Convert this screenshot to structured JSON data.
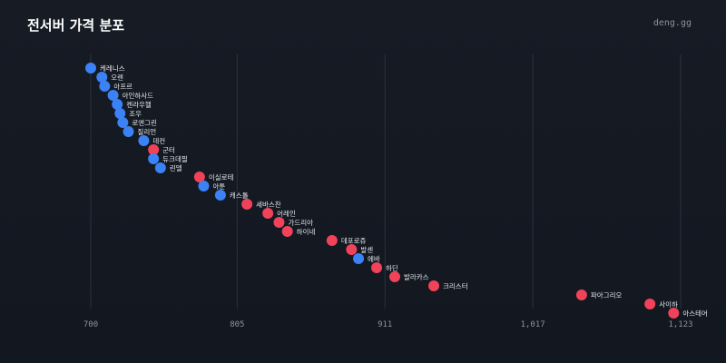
{
  "header": {
    "title": "전서버 가격 분포",
    "brand": "deng.gg"
  },
  "colors": {
    "background": "#131821",
    "grid": "#2b3340",
    "series_blue": "#3b82f6",
    "series_red": "#f0435a"
  },
  "chart_data": {
    "type": "scatter",
    "title": "전서버 가격 분포",
    "xlabel": "",
    "ylabel": "",
    "xlim": [
      700,
      1123
    ],
    "xticks": [
      700,
      805,
      911,
      1017,
      1123
    ],
    "xtick_labels": [
      "700",
      "805",
      "911",
      "1,017",
      "1,123"
    ],
    "grid": "vertical",
    "legend": "none",
    "points": [
      {
        "label": "케레니스",
        "value": 700,
        "color": "blue"
      },
      {
        "label": "오렌",
        "value": 708,
        "color": "blue"
      },
      {
        "label": "아프르",
        "value": 710,
        "color": "blue"
      },
      {
        "label": "아인하사드",
        "value": 716,
        "color": "blue"
      },
      {
        "label": "켄라우헬",
        "value": 719,
        "color": "blue"
      },
      {
        "label": "조우",
        "value": 721,
        "color": "blue"
      },
      {
        "label": "로엔그린",
        "value": 723,
        "color": "blue"
      },
      {
        "label": "질리언",
        "value": 727,
        "color": "blue"
      },
      {
        "label": "데컨",
        "value": 738,
        "color": "blue"
      },
      {
        "label": "군터",
        "value": 745,
        "color": "red"
      },
      {
        "label": "듀크데필",
        "value": 745,
        "color": "blue"
      },
      {
        "label": "린델",
        "value": 750,
        "color": "blue"
      },
      {
        "label": "이실로테",
        "value": 778,
        "color": "red"
      },
      {
        "label": "아툰",
        "value": 781,
        "color": "blue"
      },
      {
        "label": "캐스톨",
        "value": 793,
        "color": "blue"
      },
      {
        "label": "세바스찬",
        "value": 812,
        "color": "red"
      },
      {
        "label": "어레인",
        "value": 827,
        "color": "red"
      },
      {
        "label": "가드리아",
        "value": 835,
        "color": "red"
      },
      {
        "label": "하이네",
        "value": 841,
        "color": "red"
      },
      {
        "label": "데포로쥬",
        "value": 873,
        "color": "red"
      },
      {
        "label": "발센",
        "value": 887,
        "color": "red"
      },
      {
        "label": "에바",
        "value": 892,
        "color": "blue"
      },
      {
        "label": "하딘",
        "value": 905,
        "color": "red"
      },
      {
        "label": "발라카스",
        "value": 918,
        "color": "red"
      },
      {
        "label": "크리스터",
        "value": 946,
        "color": "red"
      },
      {
        "label": "파아그리오",
        "value": 1052,
        "color": "red"
      },
      {
        "label": "사이하",
        "value": 1101,
        "color": "red"
      },
      {
        "label": "아스테어",
        "value": 1118,
        "color": "red"
      }
    ]
  }
}
